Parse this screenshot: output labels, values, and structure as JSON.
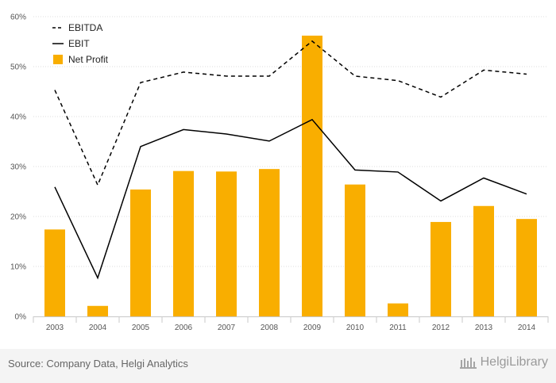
{
  "chart_data": {
    "type": "bar",
    "categories": [
      "2003",
      "2004",
      "2005",
      "2006",
      "2007",
      "2008",
      "2009",
      "2010",
      "2011",
      "2012",
      "2013",
      "2014"
    ],
    "ylim": [
      0,
      60
    ],
    "yticks": [
      "0%",
      "10%",
      "20%",
      "30%",
      "40%",
      "50%",
      "60%"
    ],
    "grid": true,
    "legend_position": "top-left",
    "series": [
      {
        "name": "EBITDA",
        "kind": "line",
        "style": "dashed",
        "color": "#000000",
        "values": [
          45.3,
          26.3,
          46.8,
          48.9,
          48.1,
          48.1,
          55.1,
          48.1,
          47.2,
          43.9,
          49.3,
          48.5
        ]
      },
      {
        "name": "EBIT",
        "kind": "line",
        "style": "solid",
        "color": "#000000",
        "values": [
          25.9,
          7.7,
          34.0,
          37.4,
          36.5,
          35.1,
          39.4,
          29.3,
          28.9,
          23.1,
          27.7,
          24.5
        ]
      },
      {
        "name": "Net Profit",
        "kind": "bar",
        "color": "#f9ae00",
        "values": [
          17.4,
          2.1,
          25.4,
          29.1,
          29.0,
          29.5,
          56.2,
          26.4,
          2.6,
          18.9,
          22.1,
          19.5
        ]
      }
    ]
  },
  "footer": {
    "source": "Source: Company Data, Helgi Analytics",
    "brand": "HelgiLibrary"
  }
}
